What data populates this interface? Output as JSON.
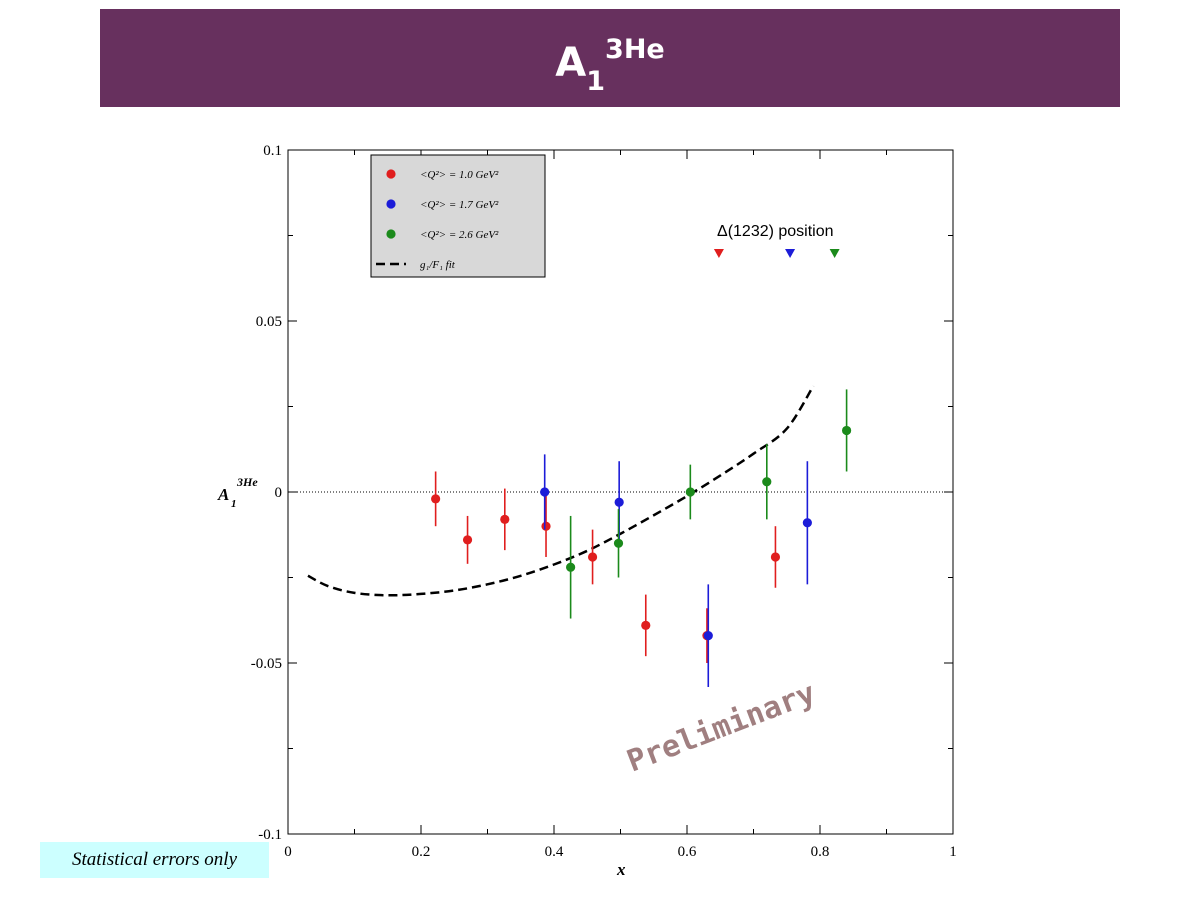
{
  "header": {
    "title_base": "A",
    "title_sub": "1",
    "title_sup": "3He"
  },
  "note": "Statistical errors only",
  "colors": {
    "title_bg": "#67305e",
    "red": "#e01e1e",
    "blue": "#1c1cd8",
    "green": "#1b8a1b",
    "note_bg": "#ccffff",
    "watermark": "#a07f80"
  },
  "chart_data": {
    "type": "scatter",
    "xlim": [
      0,
      1
    ],
    "ylim": [
      -0.1,
      0.1
    ],
    "x_ticks": [
      "0",
      "0.2",
      "0.4",
      "0.6",
      "0.8",
      "1"
    ],
    "y_ticks": [
      "-0.1",
      "-0.05",
      "0",
      "0.05",
      "0.1"
    ],
    "xlabel": "x",
    "ylabel": {
      "base": "A",
      "sub": "1",
      "sup": "3He"
    },
    "watermark": "Preliminary",
    "delta_label": "Δ(1232) position",
    "delta_markers": [
      {
        "x": 0.648,
        "color": "red"
      },
      {
        "x": 0.755,
        "color": "blue"
      },
      {
        "x": 0.822,
        "color": "green"
      }
    ],
    "legend": {
      "position": "top-left",
      "entries": [
        {
          "label": "<Q²> = 1.0 GeV²",
          "color": "red",
          "kind": "marker"
        },
        {
          "label": "<Q²> = 1.7 GeV²",
          "color": "blue",
          "kind": "marker"
        },
        {
          "label": "<Q²> = 2.6 GeV²",
          "color": "green",
          "kind": "marker"
        },
        {
          "label": "g₁/F₁ fit",
          "color": "#000000",
          "kind": "dash"
        }
      ]
    },
    "series": [
      {
        "name": "<Q²> = 1.0 GeV²",
        "color": "red",
        "points": [
          {
            "x": 0.222,
            "y": -0.002,
            "err": 0.008
          },
          {
            "x": 0.27,
            "y": -0.014,
            "err": 0.007
          },
          {
            "x": 0.326,
            "y": -0.008,
            "err": 0.009
          },
          {
            "x": 0.388,
            "y": -0.01,
            "err": 0.009
          },
          {
            "x": 0.458,
            "y": -0.019,
            "err": 0.008
          },
          {
            "x": 0.538,
            "y": -0.039,
            "err": 0.009
          },
          {
            "x": 0.63,
            "y": -0.042,
            "err": 0.008
          },
          {
            "x": 0.733,
            "y": -0.019,
            "err": 0.009
          }
        ]
      },
      {
        "name": "<Q²> = 1.7 GeV²",
        "color": "blue",
        "points": [
          {
            "x": 0.386,
            "y": 0.0,
            "err": 0.011
          },
          {
            "x": 0.498,
            "y": -0.003,
            "err": 0.012
          },
          {
            "x": 0.632,
            "y": -0.042,
            "err": 0.015
          },
          {
            "x": 0.781,
            "y": -0.009,
            "err": 0.018
          }
        ]
      },
      {
        "name": "<Q²> = 2.6 GeV²",
        "color": "green",
        "points": [
          {
            "x": 0.425,
            "y": -0.022,
            "err": 0.015
          },
          {
            "x": 0.497,
            "y": -0.015,
            "err": 0.01
          },
          {
            "x": 0.605,
            "y": 0.0,
            "err": 0.008
          },
          {
            "x": 0.72,
            "y": 0.003,
            "err": 0.011
          },
          {
            "x": 0.84,
            "y": 0.018,
            "err": 0.012
          }
        ]
      }
    ],
    "fit_curve": {
      "name": "g₁/F₁ fit",
      "x": [
        0.03,
        0.06,
        0.1,
        0.15,
        0.2,
        0.25,
        0.3,
        0.35,
        0.4,
        0.45,
        0.5,
        0.55,
        0.6,
        0.65,
        0.7,
        0.75,
        0.79
      ],
      "y": [
        -0.0245,
        -0.0275,
        -0.0295,
        -0.0302,
        -0.0298,
        -0.0288,
        -0.027,
        -0.0245,
        -0.0212,
        -0.0172,
        -0.0122,
        -0.0068,
        -0.0012,
        0.0048,
        0.0112,
        0.0185,
        0.031
      ]
    }
  }
}
